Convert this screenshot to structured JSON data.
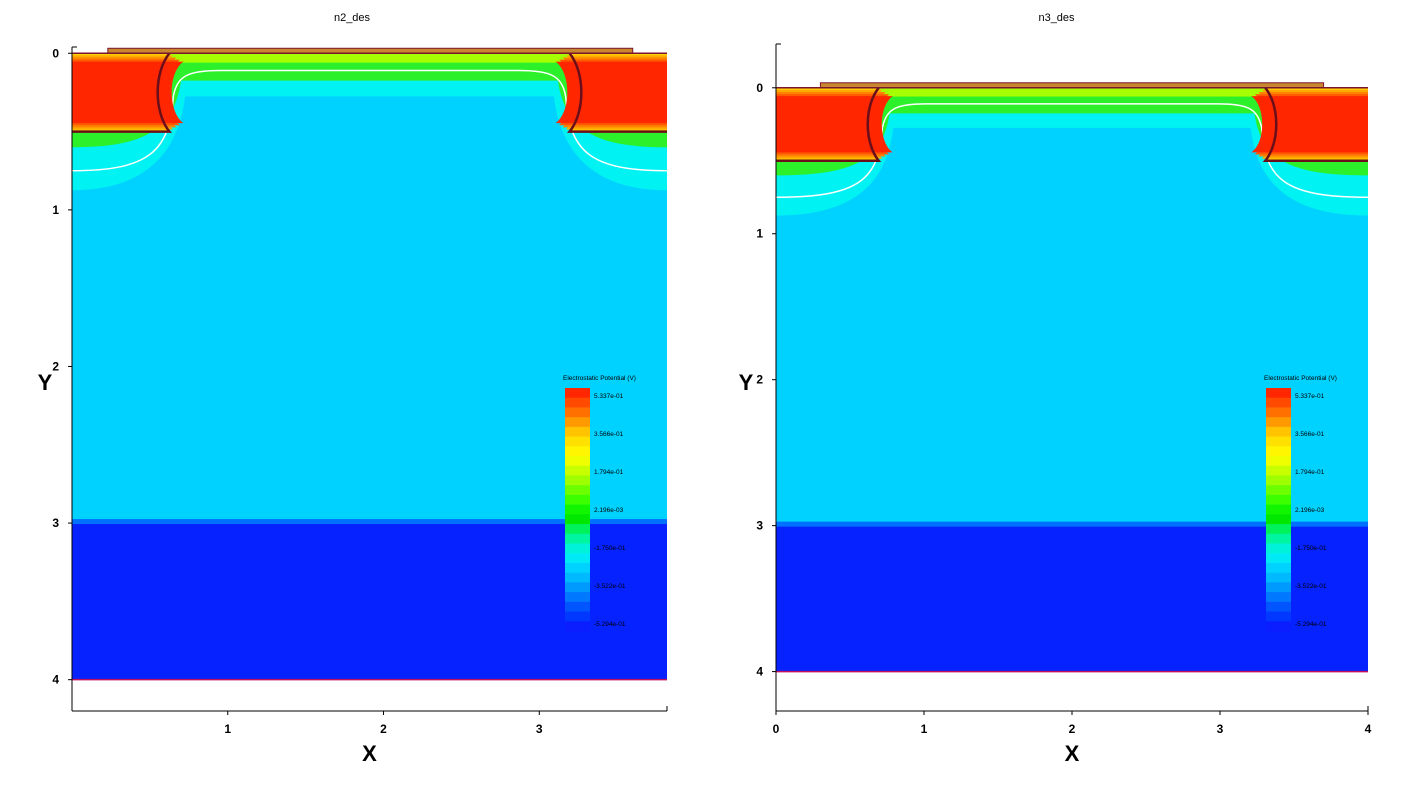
{
  "chart_data": [
    {
      "type": "heatmap",
      "title": "n2_des",
      "xlabel": "X",
      "ylabel": "Y",
      "xlim": [
        0.0,
        3.82
      ],
      "ylim": [
        4.2,
        -0.04
      ],
      "y_inverted": true,
      "x_ticks": [
        1,
        2,
        3
      ],
      "y_ticks": [
        0,
        1,
        2,
        3,
        4
      ],
      "device": {
        "x_extent": [
          0,
          3.82
        ],
        "y_extent": [
          0,
          4
        ],
        "junction_depth": 0.5,
        "substrate_boundary_y": 3.0,
        "source_region_x": [
          0,
          0.55
        ],
        "drain_region_x": [
          3.27,
          3.82
        ],
        "gate_x": [
          0.23,
          3.6
        ]
      },
      "legend": {
        "title": "Electrostatic Potential (V)",
        "labels": [
          "5.337e-01",
          "3.566e-01",
          "1.794e-01",
          "2.196e-03",
          "-1.750e-01",
          "-3.522e-01",
          "-5.294e-01"
        ]
      }
    },
    {
      "type": "heatmap",
      "title": "n3_des",
      "xlabel": "X",
      "ylabel": "Y",
      "xlim": [
        0.0,
        4.0
      ],
      "ylim": [
        4.27,
        -0.3
      ],
      "y_inverted": true,
      "x_ticks": [
        0,
        1,
        2,
        3,
        4
      ],
      "y_ticks": [
        0,
        1,
        2,
        3,
        4
      ],
      "device": {
        "x_extent": [
          0,
          4
        ],
        "y_extent": [
          0,
          4
        ],
        "junction_depth": 0.5,
        "substrate_boundary_y": 3.0,
        "source_region_x": [
          0,
          0.62
        ],
        "drain_region_x": [
          3.38,
          4.0
        ],
        "gate_x": [
          0.3,
          3.7
        ]
      },
      "legend": {
        "title": "Electrostatic Potential (V)",
        "labels": [
          "5.337e-01",
          "3.566e-01",
          "1.794e-01",
          "2.196e-03",
          "-1.750e-01",
          "-3.522e-01",
          "-5.294e-01"
        ]
      }
    }
  ],
  "colors": {
    "bulk": "#00d2ff",
    "substrate": "#0522ff",
    "substrate_edge": "#0070ff",
    "depletion": "#00f2f2",
    "contour_white": "#ffffff",
    "junction_line": "#6a0f1a",
    "gate": "#c8862e",
    "legend_scale": [
      "#ff2600",
      "#ff4a00",
      "#ff7000",
      "#ff9a00",
      "#ffc300",
      "#ffe100",
      "#fff600",
      "#f0ff00",
      "#c8ff00",
      "#9eff00",
      "#6cff00",
      "#3cff00",
      "#12f500",
      "#00e800",
      "#00f25a",
      "#00f5a0",
      "#00f2d8",
      "#00eaf5",
      "#00d2ff",
      "#00baff",
      "#009aff",
      "#0078ff",
      "#0055ff",
      "#0038ff",
      "#0a1eff"
    ]
  }
}
